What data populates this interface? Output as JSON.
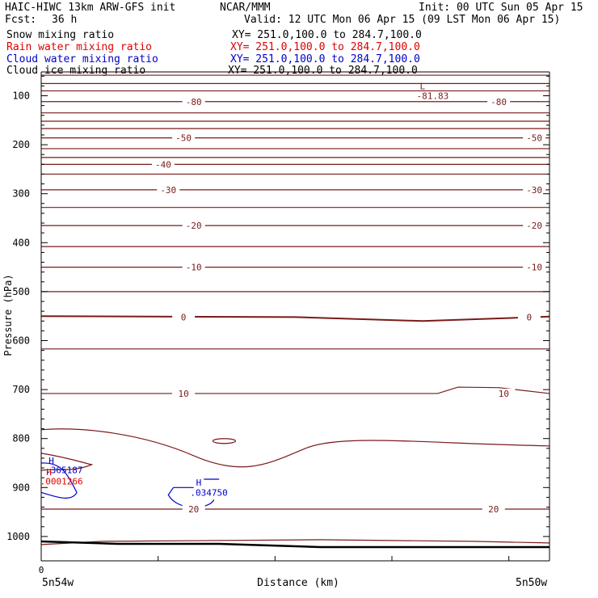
{
  "header": {
    "model": "HAIC-HIWC 13km ARW-GFS init",
    "org": "NCAR/MMM",
    "init": "Init: 00 UTC Sun 05 Apr 15",
    "fcst_label": "Fcst:",
    "fcst_value": "36 h",
    "valid": "Valid: 12 UTC Mon 06 Apr 15 (09 LST Mon 06 Apr 15)"
  },
  "fields": [
    {
      "name": "Snow mixing ratio",
      "xy": "XY= 251.0,100.0 to 284.7,100.0",
      "color": "#000000"
    },
    {
      "name": "Rain water mixing ratio",
      "xy": "XY= 251.0,100.0 to 284.7,100.0",
      "color": "#e00000"
    },
    {
      "name": "Cloud water mixing ratio",
      "xy": "XY= 251.0,100.0 to 284.7,100.0",
      "color": "#0000c8"
    },
    {
      "name": "Cloud ice mixing ratio",
      "xy": "XY= 251.0,100.0 to 284.7,100.0",
      "color": "#000000"
    }
  ],
  "colors": {
    "temperature": "#7a1a1a",
    "cloud_water": "#0000c8",
    "rain": "#e00000",
    "terrain": "#000000"
  },
  "chart_data": {
    "type": "line",
    "xlabel": "Distance (km)",
    "ylabel": "Pressure (hPa)",
    "x_tick_labels": [
      "0"
    ],
    "x_end_labels": {
      "left": "5n54w",
      "right": "5n50w"
    },
    "y_tick_labels": [
      "100",
      "200",
      "300",
      "400",
      "500",
      "600",
      "700",
      "800",
      "900",
      "1000"
    ],
    "y_ticks": [
      100,
      200,
      300,
      400,
      500,
      600,
      700,
      800,
      900,
      1000
    ],
    "ylim": [
      50,
      1050
    ],
    "temperature_contours": [
      {
        "p": 58,
        "label": ""
      },
      {
        "p": 75,
        "label": ""
      },
      {
        "p": 90,
        "label": ""
      },
      {
        "p": 112,
        "label": "-80",
        "label_x": [
          0.3,
          0.9
        ]
      },
      {
        "p": 135,
        "label": ""
      },
      {
        "p": 152,
        "label": ""
      },
      {
        "p": 167,
        "label": ""
      },
      {
        "p": 186,
        "label": "-50",
        "label_x": [
          0.28,
          0.97
        ]
      },
      {
        "p": 208,
        "label": ""
      },
      {
        "p": 226,
        "label": ""
      },
      {
        "p": 240,
        "label": "-40",
        "label_x": [
          0.24
        ]
      },
      {
        "p": 260,
        "label": ""
      },
      {
        "p": 292,
        "label": "-30",
        "label_x": [
          0.25,
          0.97
        ]
      },
      {
        "p": 328,
        "label": ""
      },
      {
        "p": 365,
        "label": "-20",
        "label_x": [
          0.3,
          0.97
        ]
      },
      {
        "p": 408,
        "label": ""
      },
      {
        "p": 450,
        "label": "-10",
        "label_x": [
          0.3,
          0.97
        ]
      },
      {
        "p": 500,
        "label": ""
      },
      {
        "p": 558,
        "label": "0",
        "label_x": [
          0.28,
          0.96
        ]
      },
      {
        "p": 617,
        "label": ""
      },
      {
        "p": 708,
        "label": "10",
        "label_x": [
          0.28,
          0.91
        ]
      },
      {
        "p": 820,
        "label": ""
      },
      {
        "p": 944,
        "label": "20",
        "label_x": [
          0.3,
          0.89
        ]
      },
      {
        "p": 1000,
        "label": ""
      },
      {
        "p": 1010,
        "label": ""
      }
    ],
    "annotations": [
      {
        "text": "L",
        "color": "#7a1a1a"
      },
      {
        "text": "-81.83",
        "color": "#7a1a1a"
      },
      {
        "text": "H",
        "color": "#0000c8"
      },
      {
        "text": ".365187",
        "color": "#0000c8"
      },
      {
        "text": "H",
        "color": "#e00000"
      },
      {
        "text": ".0001266",
        "color": "#e00000"
      },
      {
        "text": "H",
        "color": "#0000c8"
      },
      {
        "text": ".034750",
        "color": "#0000c8"
      }
    ]
  }
}
